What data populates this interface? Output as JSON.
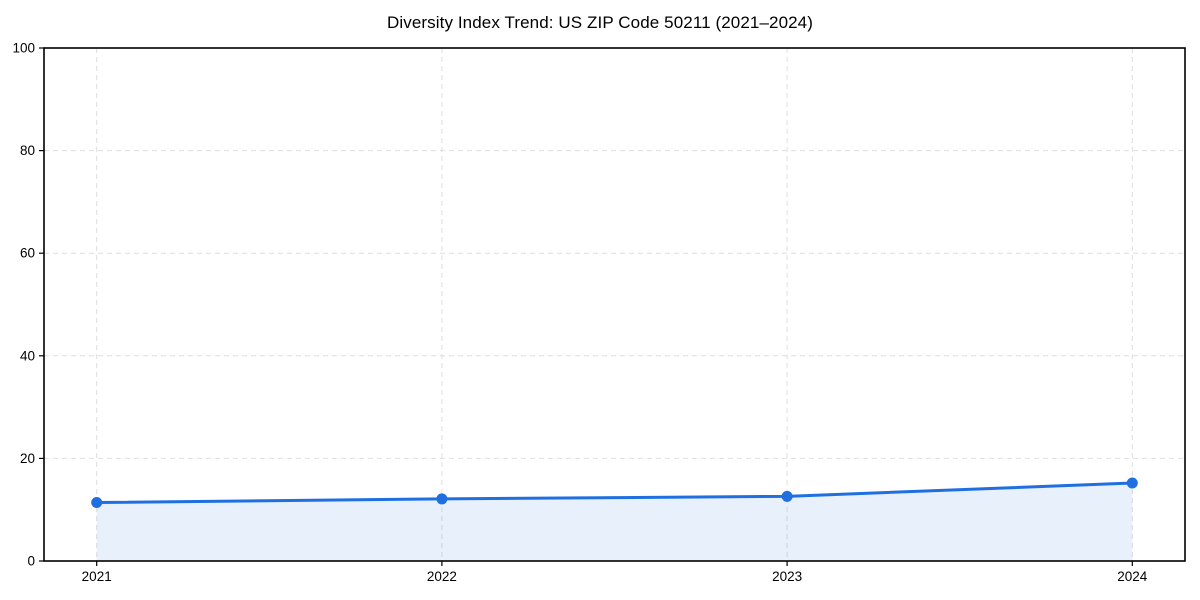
{
  "chart_data": {
    "type": "line",
    "title": "Diversity Index Trend: US ZIP Code 50211 (2021–2024)",
    "x": [
      "2021",
      "2022",
      "2023",
      "2024"
    ],
    "series": [
      {
        "name": "Diversity Index",
        "values": [
          11.4,
          12.1,
          12.6,
          15.2
        ]
      }
    ],
    "xlabel": "",
    "ylabel": "",
    "ylim": [
      0,
      100
    ],
    "yticks": [
      0,
      20,
      40,
      60,
      80,
      100
    ],
    "grid": "dashed-both-axes",
    "legend": "none",
    "area_fill": true,
    "marker": "circle",
    "colors": {
      "line": "#1f6fe0",
      "marker": "#1f6fe0",
      "area": "#1f6fe0",
      "area_opacity": 0.1,
      "grid": "#dedede",
      "spine": "#000000",
      "tick_text": "#000000",
      "title_text": "#000000",
      "background": "#ffffff"
    }
  }
}
